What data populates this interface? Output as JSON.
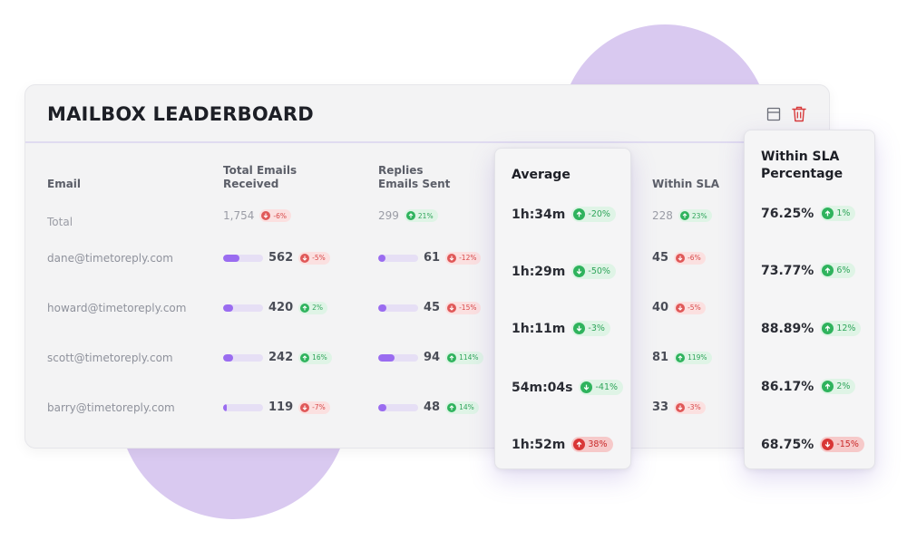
{
  "title": "MAILBOX LEADERBOARD",
  "icons": {
    "layout": "layout-icon",
    "delete": "trash-icon"
  },
  "colors": {
    "accent": "#9a6cf0",
    "up": "#2fb35d",
    "down": "#e05858",
    "blob": "#d9c9f0"
  },
  "columns": {
    "email": "Email",
    "received_line1": "Total Emails",
    "received_line2": "Received",
    "replies_line1": "Replies",
    "replies_line2": "Emails Sent",
    "within_sla": "Within SLA"
  },
  "total": {
    "label": "Total",
    "received": "1,754",
    "received_change": "-6%",
    "replies": "299",
    "replies_change": "21%",
    "sla": "228",
    "sla_change": "23%"
  },
  "rows": [
    {
      "email": "dane@timetoreply.com",
      "received": "562",
      "received_change": "-5%",
      "received_fill": 0.42,
      "replies": "61",
      "replies_change": "-12%",
      "replies_fill": 0.18,
      "sla": "45",
      "sla_change": "-6%"
    },
    {
      "email": "howard@timetoreply.com",
      "received": "420",
      "received_change": "2%",
      "received_fill": 0.25,
      "replies": "45",
      "replies_change": "-15%",
      "replies_fill": 0.2,
      "sla": "40",
      "sla_change": "-5%"
    },
    {
      "email": "scott@timetoreply.com",
      "received": "242",
      "received_change": "16%",
      "received_fill": 0.25,
      "replies": "94",
      "replies_change": "114%",
      "replies_fill": 0.42,
      "sla": "81",
      "sla_change": "119%"
    },
    {
      "email": "barry@timetoreply.com",
      "received": "119",
      "received_change": "-7%",
      "received_fill": 0.1,
      "replies": "48",
      "replies_change": "14%",
      "replies_fill": 0.2,
      "sla": "33",
      "sla_change": "-3%"
    }
  ],
  "average": {
    "title": "Average",
    "values": [
      {
        "value": "1h:34m",
        "change": "-20%"
      },
      {
        "value": "1h:29m",
        "change": "-50%"
      },
      {
        "value": "1h:11m",
        "change": "-3%"
      },
      {
        "value": "54m:04s",
        "change": "-41%"
      },
      {
        "value": "1h:52m",
        "change": "38%"
      }
    ]
  },
  "sla_percentage": {
    "title_line1": "Within SLA",
    "title_line2": "Percentage",
    "values": [
      {
        "value": "76.25%",
        "change": "1%"
      },
      {
        "value": "73.77%",
        "change": "6%"
      },
      {
        "value": "88.89%",
        "change": "12%"
      },
      {
        "value": "86.17%",
        "change": "2%"
      },
      {
        "value": "68.75%",
        "change": "-15%"
      }
    ]
  }
}
